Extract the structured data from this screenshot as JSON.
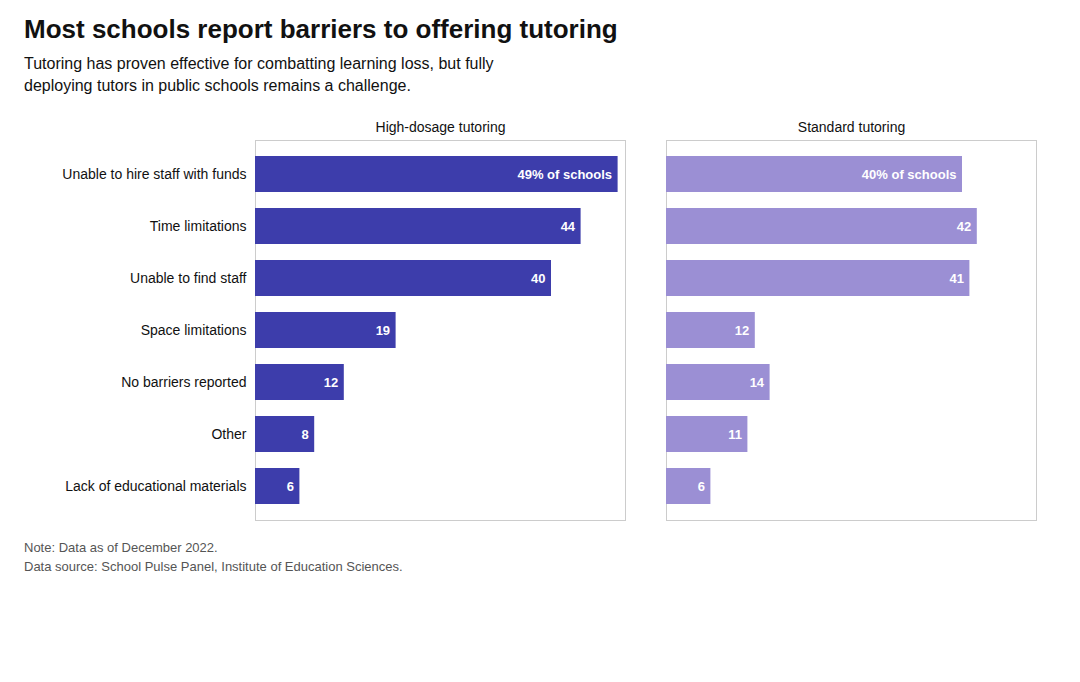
{
  "chart_data": {
    "type": "bar",
    "orientation": "horizontal",
    "title": "Most schools report barriers to offering tutoring",
    "subtitle": "Tutoring has proven effective for combatting learning loss, but fully\ndeploying tutors in public schools remains a challenge.",
    "note": "Note: Data as of December 2022.\nData source: School Pulse Panel, Institute of Education Sciences.",
    "categories": [
      "Unable to hire staff with funds",
      "Time limitations",
      "Unable to find staff",
      "Space limitations",
      "No barriers reported",
      "Other",
      "Lack of educational materials"
    ],
    "series": [
      {
        "name": "High-dosage tutoring",
        "color": "#3d3dab",
        "values": [
          49,
          44,
          40,
          19,
          12,
          8,
          6
        ],
        "value_labels": [
          "49% of schools",
          "44",
          "40",
          "19",
          "12",
          "8",
          "6"
        ]
      },
      {
        "name": "Standard tutoring",
        "color": "#9b8fd4",
        "values": [
          40,
          42,
          41,
          12,
          14,
          11,
          6
        ],
        "value_labels": [
          "40% of schools",
          "42",
          "41",
          "12",
          "14",
          "11",
          "6"
        ]
      }
    ],
    "xlim": [
      0,
      50
    ],
    "data_labels": true,
    "tick_labels": "y",
    "grid": false
  }
}
